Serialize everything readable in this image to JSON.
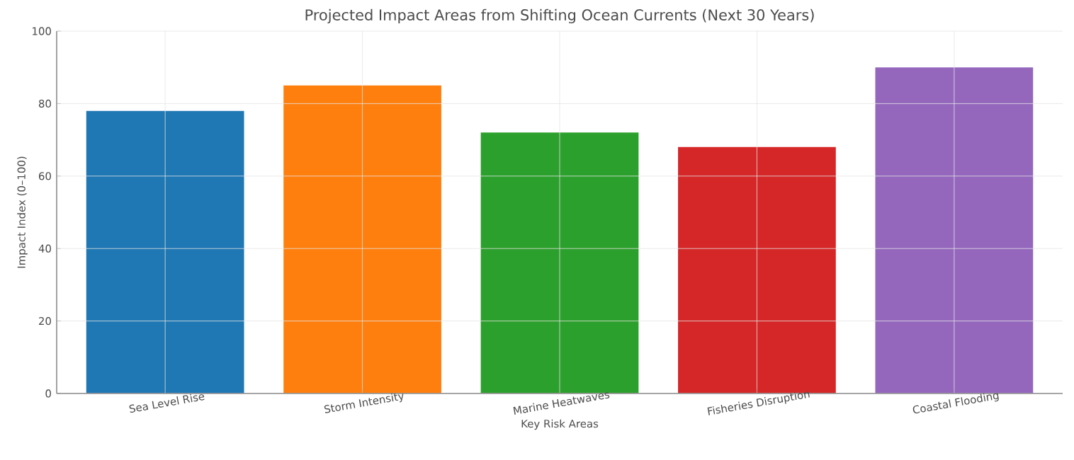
{
  "chart_data": {
    "type": "bar",
    "title": "Projected Impact Areas from Shifting Ocean Currents (Next 30 Years)",
    "xlabel": "Key Risk Areas",
    "ylabel": "Impact Index (0–100)",
    "categories": [
      "Sea Level Rise",
      "Storm Intensity",
      "Marine Heatwaves",
      "Fisheries Disruption",
      "Coastal Flooding"
    ],
    "values": [
      78,
      85,
      72,
      68,
      90
    ],
    "colors": [
      "#1f77b4",
      "#ff7f0e",
      "#2ca02c",
      "#d62728",
      "#9467bd"
    ],
    "ylim": [
      0,
      100
    ],
    "yticks": [
      0,
      20,
      40,
      60,
      80,
      100
    ],
    "grid": true
  }
}
